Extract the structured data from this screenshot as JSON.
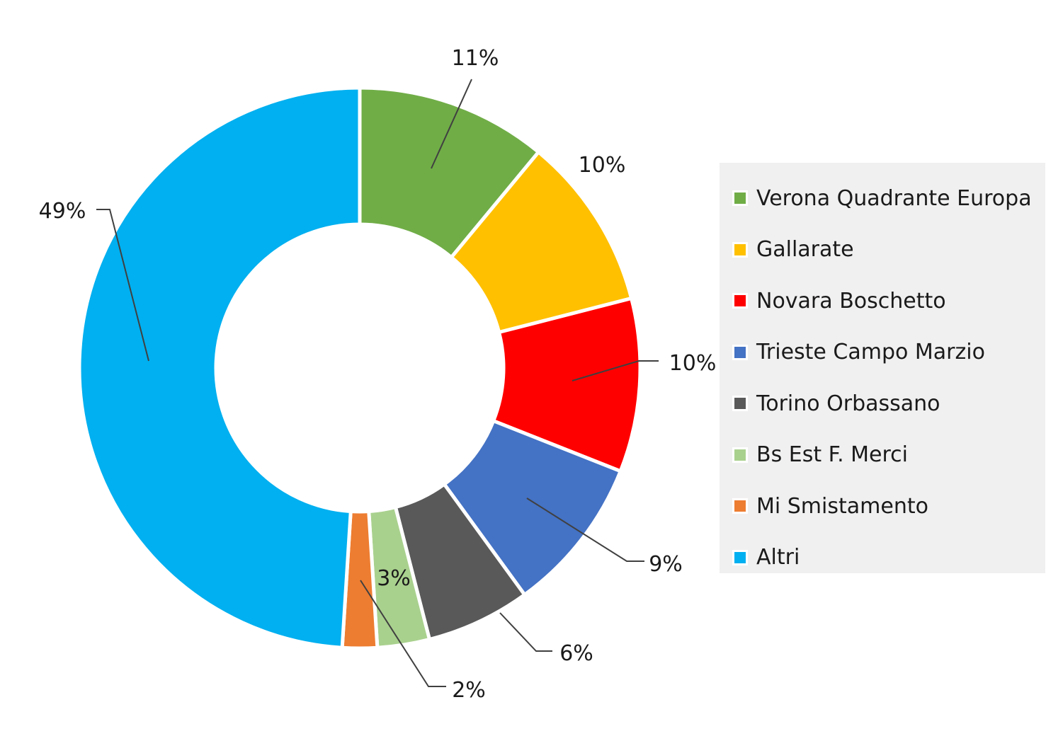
{
  "chart_data": {
    "type": "pie",
    "variant": "donut",
    "legend_position": "right",
    "slices": [
      {
        "name": "Verona Quadrante Europa",
        "value": 11,
        "label": "11%",
        "color": "#70ad47"
      },
      {
        "name": "Gallarate",
        "value": 10,
        "label": "10%",
        "color": "#ffc000"
      },
      {
        "name": "Novara Boschetto",
        "value": 10,
        "label": "10%",
        "color": "#ff0000"
      },
      {
        "name": "Trieste Campo Marzio",
        "value": 9,
        "label": "9%",
        "color": "#4472c4"
      },
      {
        "name": "Torino Orbassano",
        "value": 6,
        "label": "6%",
        "color": "#595959"
      },
      {
        "name": "Bs Est F. Merci",
        "value": 3,
        "label": "3%",
        "color": "#a9d18e"
      },
      {
        "name": "Mi Smistamento",
        "value": 2,
        "label": "2%",
        "color": "#ed7d31"
      },
      {
        "name": "Altri",
        "value": 49,
        "label": "49%",
        "color": "#00b0f0"
      }
    ]
  }
}
